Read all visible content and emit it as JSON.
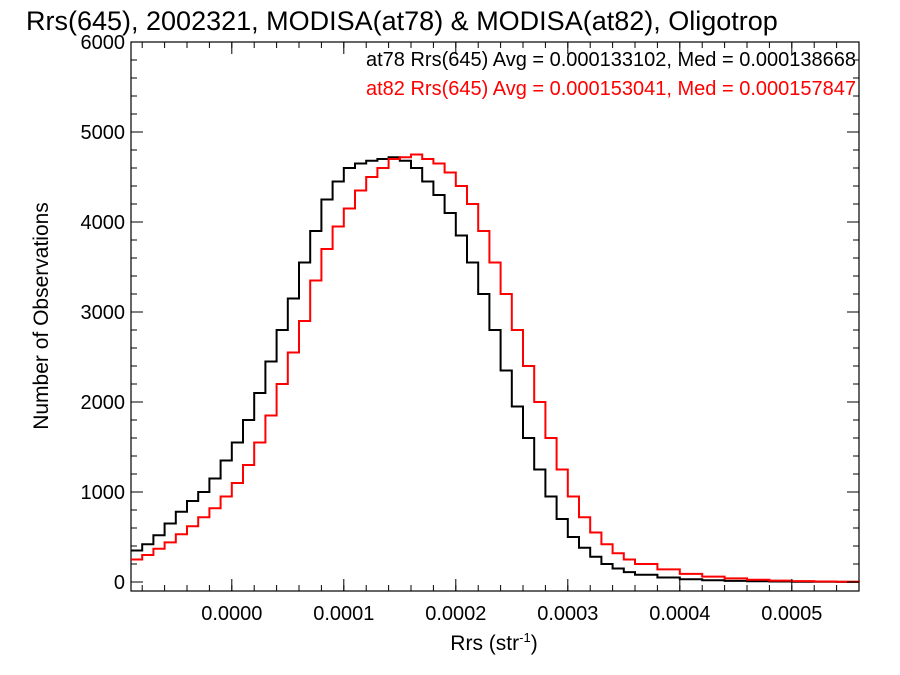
{
  "chart_data": {
    "type": "step-line histogram",
    "title": "Rrs(645), 2002321, MODISA(at78) & MODISA(at82), Oligotrop",
    "xlabel": "Rrs (str",
    "xlabel_sup": "-1",
    "xlabel_close": ")",
    "ylabel": "Number of Observations",
    "xlim": [
      -9e-05,
      0.00056
    ],
    "ylim": [
      -100,
      6000
    ],
    "x_ticks": [
      "0.0000",
      "0.0001",
      "0.0002",
      "0.0003",
      "0.0004",
      "0.0005"
    ],
    "y_ticks": [
      "0",
      "1000",
      "2000",
      "3000",
      "4000",
      "5000",
      "6000"
    ],
    "legend_placement": "top-right",
    "series": [
      {
        "name": "at78",
        "legend_text": "at78 Rrs(645) Avg = 0.000133102, Med = 0.000138668",
        "color": "#000000",
        "x": [
          -9e-05,
          -8e-05,
          -7e-05,
          -6e-05,
          -5e-05,
          -4e-05,
          -3e-05,
          -2e-05,
          -1e-05,
          0.0,
          1e-05,
          2e-05,
          3e-05,
          4e-05,
          5e-05,
          6e-05,
          7e-05,
          8e-05,
          9e-05,
          0.0001,
          0.00011,
          0.00012,
          0.00013,
          0.00014,
          0.00015,
          0.00016,
          0.00017,
          0.00018,
          0.00019,
          0.0002,
          0.00021,
          0.00022,
          0.00023,
          0.00024,
          0.00025,
          0.00026,
          0.00027,
          0.00028,
          0.00029,
          0.0003,
          0.00031,
          0.00032,
          0.00033,
          0.00034,
          0.00035,
          0.00036,
          0.00038,
          0.0004,
          0.00042,
          0.00044,
          0.00046,
          0.00048,
          0.0005,
          0.00052,
          0.00054,
          0.00056
        ],
        "y": [
          350,
          420,
          520,
          650,
          780,
          900,
          1000,
          1150,
          1350,
          1550,
          1800,
          2100,
          2450,
          2800,
          3150,
          3550,
          3900,
          4250,
          4450,
          4600,
          4650,
          4680,
          4700,
          4720,
          4680,
          4600,
          4450,
          4300,
          4100,
          3850,
          3550,
          3200,
          2800,
          2350,
          1950,
          1600,
          1250,
          950,
          700,
          500,
          380,
          280,
          200,
          150,
          110,
          80,
          50,
          30,
          20,
          12,
          8,
          5,
          3,
          2,
          1,
          0
        ]
      },
      {
        "name": "at82",
        "legend_text": "at82 Rrs(645) Avg = 0.000153041, Med = 0.000157847",
        "color": "#ff0000",
        "x": [
          -9e-05,
          -8e-05,
          -7e-05,
          -6e-05,
          -5e-05,
          -4e-05,
          -3e-05,
          -2e-05,
          -1e-05,
          0.0,
          1e-05,
          2e-05,
          3e-05,
          4e-05,
          5e-05,
          6e-05,
          7e-05,
          8e-05,
          9e-05,
          0.0001,
          0.00011,
          0.00012,
          0.00013,
          0.00014,
          0.00015,
          0.00016,
          0.00017,
          0.00018,
          0.00019,
          0.0002,
          0.00021,
          0.00022,
          0.00023,
          0.00024,
          0.00025,
          0.00026,
          0.00027,
          0.00028,
          0.00029,
          0.0003,
          0.00031,
          0.00032,
          0.00033,
          0.00034,
          0.00035,
          0.00036,
          0.00038,
          0.0004,
          0.00042,
          0.00044,
          0.00046,
          0.00048,
          0.0005,
          0.00052,
          0.00054,
          0.00056
        ],
        "y": [
          250,
          300,
          370,
          440,
          530,
          620,
          720,
          820,
          950,
          1100,
          1300,
          1550,
          1850,
          2200,
          2550,
          2900,
          3350,
          3700,
          3950,
          4150,
          4350,
          4500,
          4600,
          4700,
          4720,
          4750,
          4700,
          4650,
          4550,
          4400,
          4200,
          3900,
          3550,
          3200,
          2800,
          2400,
          2000,
          1600,
          1250,
          950,
          720,
          550,
          420,
          320,
          250,
          200,
          140,
          90,
          60,
          40,
          25,
          15,
          10,
          6,
          3,
          0
        ]
      }
    ]
  }
}
